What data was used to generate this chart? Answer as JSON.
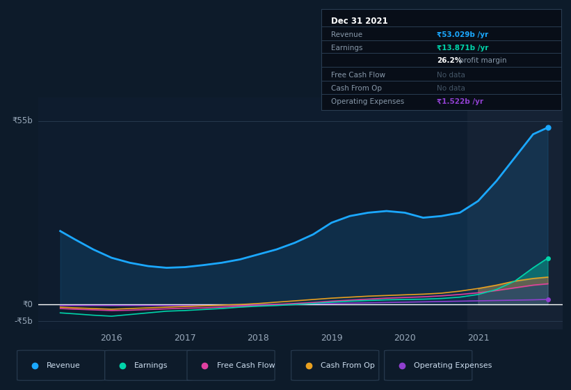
{
  "bg_color": "#0d1b2a",
  "chart_bg_color": "#0e1c2e",
  "highlight_bg": "#152234",
  "years_x": [
    2015.3,
    2015.5,
    2015.75,
    2016.0,
    2016.25,
    2016.5,
    2016.75,
    2017.0,
    2017.25,
    2017.5,
    2017.75,
    2018.0,
    2018.25,
    2018.5,
    2018.75,
    2019.0,
    2019.25,
    2019.5,
    2019.75,
    2020.0,
    2020.25,
    2020.5,
    2020.75,
    2021.0,
    2021.25,
    2021.5,
    2021.75,
    2021.95
  ],
  "revenue": [
    22,
    19.5,
    16.5,
    14.0,
    12.5,
    11.5,
    11.0,
    11.2,
    11.8,
    12.5,
    13.5,
    15.0,
    16.5,
    18.5,
    21.0,
    24.5,
    26.5,
    27.5,
    28.0,
    27.5,
    26.0,
    26.5,
    27.5,
    31.0,
    37.0,
    44.0,
    51.0,
    53.0
  ],
  "earnings": [
    -2.5,
    -2.8,
    -3.2,
    -3.5,
    -3.0,
    -2.5,
    -2.0,
    -1.8,
    -1.5,
    -1.2,
    -0.8,
    -0.5,
    -0.3,
    0.0,
    0.3,
    0.7,
    1.0,
    1.2,
    1.4,
    1.5,
    1.6,
    1.8,
    2.2,
    3.0,
    4.5,
    7.0,
    11.0,
    13.9
  ],
  "free_cash_flow": [
    -1.2,
    -1.4,
    -1.6,
    -1.8,
    -1.7,
    -1.5,
    -1.3,
    -1.1,
    -1.0,
    -0.8,
    -0.5,
    -0.3,
    0.0,
    0.3,
    0.6,
    1.0,
    1.3,
    1.6,
    1.9,
    2.1,
    2.3,
    2.6,
    3.0,
    3.5,
    4.2,
    5.0,
    5.8,
    6.2
  ],
  "cash_from_op": [
    -0.8,
    -1.0,
    -1.2,
    -1.4,
    -1.2,
    -1.0,
    -0.8,
    -0.6,
    -0.4,
    -0.2,
    0.0,
    0.3,
    0.7,
    1.1,
    1.5,
    1.9,
    2.2,
    2.5,
    2.7,
    2.9,
    3.1,
    3.4,
    4.0,
    4.8,
    5.8,
    7.0,
    7.8,
    8.2
  ],
  "op_expenses": [
    -0.3,
    -0.3,
    -0.3,
    -0.3,
    -0.3,
    -0.3,
    -0.3,
    -0.3,
    -0.3,
    -0.3,
    -0.2,
    -0.1,
    0.0,
    0.1,
    0.2,
    0.3,
    0.4,
    0.5,
    0.6,
    0.7,
    0.8,
    0.9,
    1.0,
    1.1,
    1.2,
    1.3,
    1.4,
    1.522
  ],
  "revenue_color": "#1ba8ff",
  "earnings_color": "#00d4aa",
  "free_cash_flow_color": "#e040a0",
  "cash_from_op_color": "#e8a020",
  "op_expenses_color": "#9040d0",
  "y_min": -7.5,
  "y_max": 62,
  "x_min": 2015.0,
  "x_max": 2022.15,
  "highlight_start": 2020.85,
  "highlight_end": 2022.15,
  "info_box": {
    "date": "Dec 31 2021",
    "revenue_val": "₹53.029b /yr",
    "earnings_val": "₹13.871b /yr",
    "profit_margin": "26.2% profit margin",
    "free_cash_flow_val": "No data",
    "cash_from_op_val": "No data",
    "op_expenses_val": "₹1.522b /yr"
  },
  "legend_items": [
    {
      "label": "Revenue",
      "color": "#1ba8ff"
    },
    {
      "label": "Earnings",
      "color": "#00d4aa"
    },
    {
      "label": "Free Cash Flow",
      "color": "#e040a0"
    },
    {
      "label": "Cash From Op",
      "color": "#e8a020"
    },
    {
      "label": "Operating Expenses",
      "color": "#9040d0"
    }
  ]
}
